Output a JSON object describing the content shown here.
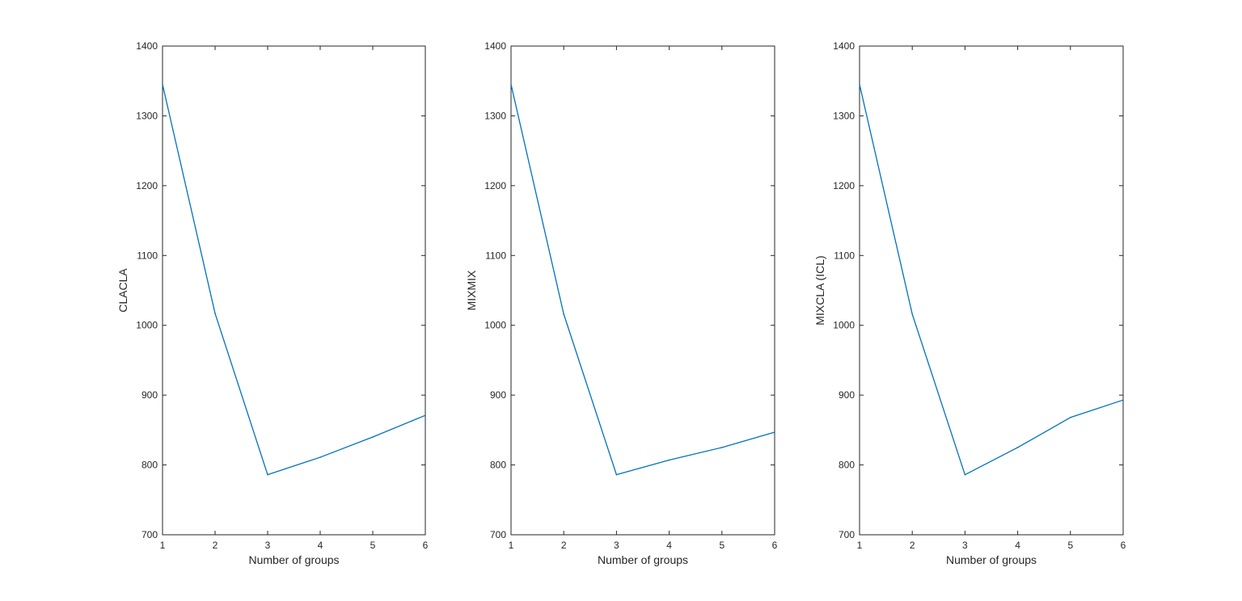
{
  "chart_data": [
    {
      "type": "line",
      "title": "",
      "xlabel": "Number of groups",
      "ylabel": "CLACLA",
      "xlim": [
        1,
        6
      ],
      "ylim": [
        700,
        1400
      ],
      "xticks": [
        "1",
        "2",
        "3",
        "4",
        "5",
        "6"
      ],
      "yticks": [
        "700",
        "800",
        "900",
        "1000",
        "1100",
        "1200",
        "1300",
        "1400"
      ],
      "grid": false,
      "x": [
        1,
        2,
        3,
        4,
        5,
        6
      ],
      "series": [
        {
          "values": [
            1345,
            1017,
            786,
            811,
            840,
            871
          ],
          "color": "#0072BD"
        }
      ]
    },
    {
      "type": "line",
      "title": "",
      "xlabel": "Number of groups",
      "ylabel": "MIXMIX",
      "xlim": [
        1,
        6
      ],
      "ylim": [
        700,
        1400
      ],
      "xticks": [
        "1",
        "2",
        "3",
        "4",
        "5",
        "6"
      ],
      "yticks": [
        "700",
        "800",
        "900",
        "1000",
        "1100",
        "1200",
        "1300",
        "1400"
      ],
      "grid": false,
      "x": [
        1,
        2,
        3,
        4,
        5,
        6
      ],
      "series": [
        {
          "values": [
            1345,
            1016,
            786,
            807,
            825,
            847
          ],
          "color": "#0072BD"
        }
      ]
    },
    {
      "type": "line",
      "title": "",
      "xlabel": "Number of groups",
      "ylabel": "MIXCLA (ICL)",
      "xlim": [
        1,
        6
      ],
      "ylim": [
        700,
        1400
      ],
      "xticks": [
        "1",
        "2",
        "3",
        "4",
        "5",
        "6"
      ],
      "yticks": [
        "700",
        "800",
        "900",
        "1000",
        "1100",
        "1200",
        "1300",
        "1400"
      ],
      "grid": false,
      "x": [
        1,
        2,
        3,
        4,
        5,
        6
      ],
      "series": [
        {
          "values": [
            1345,
            1016,
            786,
            825,
            868,
            893
          ],
          "color": "#0072BD"
        }
      ]
    }
  ]
}
